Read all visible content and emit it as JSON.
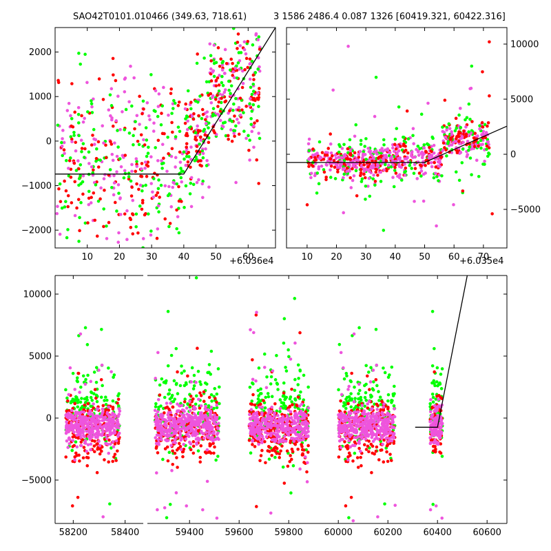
{
  "header": {
    "left": "SAO42T0101.010466 (349.63, 718.61)",
    "right": "3 1586 2486.4 0.087 1326 [60419.321, 60422.316]"
  },
  "colors": {
    "green": "#00ff00",
    "red": "#ff0000",
    "magenta": "#ee55dd",
    "line": "#000000"
  },
  "chart_data": [
    {
      "type": "scatter",
      "id": "top-left",
      "offset_label": "+6.036e4",
      "x_ticks": [
        10,
        20,
        30,
        40,
        50,
        60
      ],
      "y_ticks": [
        -2000,
        -1000,
        0,
        1000,
        2000
      ],
      "xlim": [
        0,
        68.5
      ],
      "ylim": [
        -2400,
        2550
      ],
      "fit_line": [
        [
          0,
          -740
        ],
        [
          40,
          -740
        ],
        [
          68.5,
          2550
        ]
      ],
      "clusters": [
        {
          "x": [
            0.5,
            40
          ],
          "y": [
            -2200,
            1500
          ],
          "yc": -500,
          "n": 420
        },
        {
          "x": [
            40,
            48
          ],
          "y": [
            -1800,
            1000
          ],
          "yc": 0,
          "n": 140
        },
        {
          "x": [
            48,
            64
          ],
          "y": [
            -600,
            2500
          ],
          "yc": 1200,
          "n": 260
        }
      ]
    },
    {
      "type": "scatter",
      "id": "top-right",
      "offset_label": "+6.035e4",
      "x_ticks": [
        10,
        20,
        30,
        40,
        50,
        60,
        70
      ],
      "y_ticks": [
        -5000,
        0,
        5000,
        10000
      ],
      "xlim": [
        3,
        78
      ],
      "ylim": [
        -8500,
        11500
      ],
      "fit_line": [
        [
          3,
          -740
        ],
        [
          50,
          -740
        ],
        [
          78,
          2550
        ]
      ],
      "clusters": [
        {
          "x": [
            10,
            22
          ],
          "y": [
            -2500,
            800
          ],
          "yc": -600,
          "n": 120
        },
        {
          "x": [
            22,
            36
          ],
          "y": [
            -2500,
            1500
          ],
          "yc": -700,
          "n": 220
        },
        {
          "x": [
            36,
            56
          ],
          "y": [
            -2500,
            1500
          ],
          "yc": -400,
          "n": 260
        },
        {
          "x": [
            56,
            72
          ],
          "y": [
            -1000,
            3500
          ],
          "yc": 1300,
          "n": 220
        }
      ]
    },
    {
      "type": "scatter",
      "id": "bottom",
      "x_ticks": [
        58200,
        58400,
        59400,
        59600,
        59800,
        60000,
        60200,
        60400,
        60600
      ],
      "y_ticks": [
        -5000,
        0,
        5000,
        10000
      ],
      "ylim": [
        -8500,
        11500
      ],
      "segments": [
        {
          "xlim": [
            58130,
            58470
          ],
          "ticks": [
            58200,
            58400
          ]
        },
        {
          "xlim": [
            59230,
            60680
          ],
          "ticks": [
            59400,
            59600,
            59800,
            60000,
            60200,
            60400,
            60600
          ]
        }
      ],
      "fit_line": [
        [
          60310,
          -740
        ],
        [
          60400,
          -740
        ],
        [
          60520,
          11500
        ]
      ],
      "groups": [
        {
          "x": [
            58170,
            58380
          ],
          "n": 650
        },
        {
          "x": [
            59260,
            59520
          ],
          "n": 750
        },
        {
          "x": [
            59640,
            59880
          ],
          "n": 750
        },
        {
          "x": [
            60000,
            60230
          ],
          "n": 750
        },
        {
          "x": [
            60370,
            60420
          ],
          "n": 220
        }
      ]
    }
  ]
}
